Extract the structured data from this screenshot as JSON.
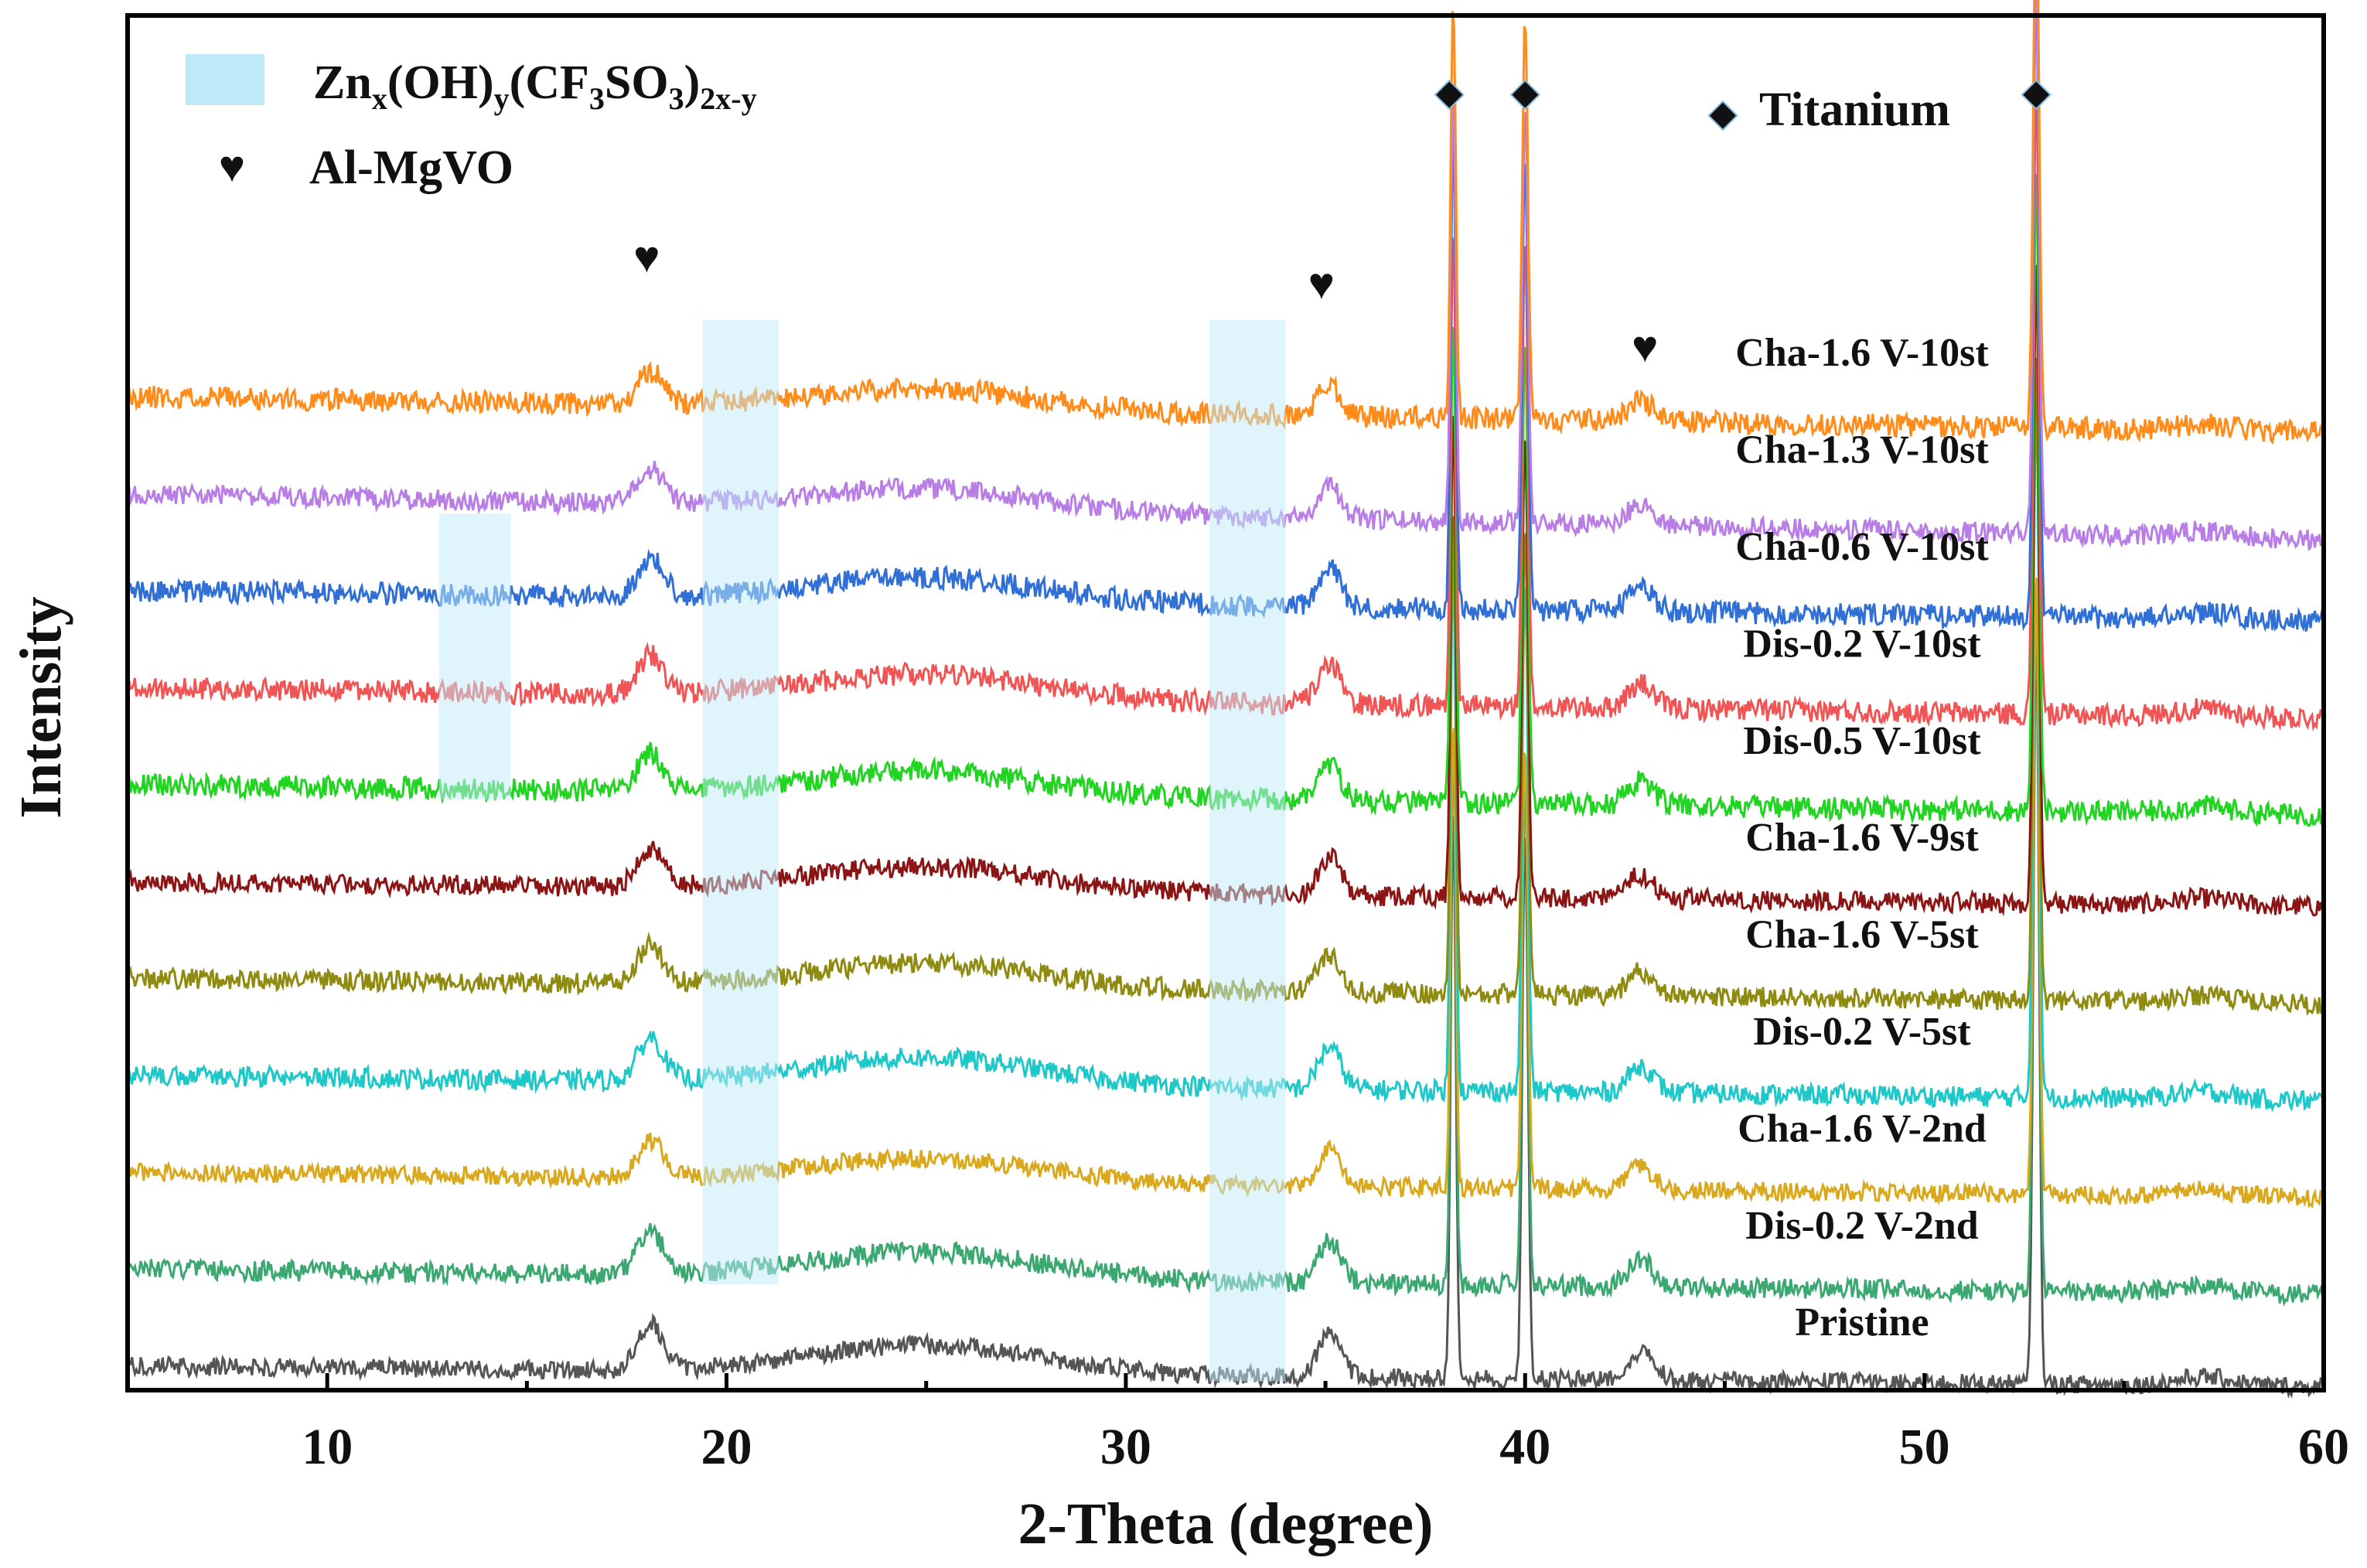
{
  "chart_data": {
    "type": "line",
    "xlabel": "2-Theta (degree)",
    "ylabel": "Intensity",
    "xlim": [
      5,
      60
    ],
    "xticks": [
      10,
      20,
      30,
      40,
      50,
      60
    ],
    "legend": {
      "band_label": {
        "pre": "Zn",
        "sub1": "x",
        "mid1": "(OH)",
        "sub2": "y",
        "mid2": "(CF",
        "sub3": "3",
        "mid3": "SO",
        "sub4": "3",
        "mid4": ")",
        "sub5": "2x-y"
      },
      "heart_label": "Al-MgVO",
      "diamond_label": "Titanium",
      "band_color": "#bfe9f7",
      "heart_symbol": "♥",
      "diamond_symbol": "◆"
    },
    "shaded_bands": [
      {
        "x": [
          12.8,
          14.6
        ],
        "series_from": "Cha-0.6 V-10st",
        "series_to": "Dis-0.5 V-10st"
      },
      {
        "x": [
          19.4,
          21.3
        ],
        "series_from": "Cha-1.6 V-10st",
        "series_to": "Dis-0.2 V-2nd"
      },
      {
        "x": [
          32.1,
          34.0
        ],
        "series_from": "Cha-1.6 V-10st",
        "series_to": "Pristine"
      }
    ],
    "markers": [
      {
        "symbol": "heart",
        "x": 18.0
      },
      {
        "symbol": "heart",
        "x": 34.9
      },
      {
        "symbol": "heart",
        "x": 43.0
      },
      {
        "symbol": "diamond",
        "x": 38.1
      },
      {
        "symbol": "diamond",
        "x": 40.0
      },
      {
        "symbol": "diamond",
        "x": 52.8
      }
    ],
    "series": [
      {
        "name": "Cha-1.6 V-10st",
        "color": "#ff8c1a",
        "offset": 9.6,
        "tilt": -0.35,
        "amp": 1.15,
        "noise": 0.11,
        "seed": 11
      },
      {
        "name": "Cha-1.3 V-10st",
        "color": "#b97ee6",
        "offset": 8.65,
        "tilt": -0.45,
        "amp": 1.2,
        "noise": 0.1,
        "seed": 12
      },
      {
        "name": "Cha-0.6 V-10st",
        "color": "#2f6fd6",
        "offset": 7.7,
        "tilt": -0.3,
        "amp": 1.35,
        "noise": 0.11,
        "seed": 13
      },
      {
        "name": "Dis-0.2 V-10st",
        "color": "#f05454",
        "offset": 6.75,
        "tilt": -0.3,
        "amp": 1.35,
        "noise": 0.11,
        "seed": 14
      },
      {
        "name": "Dis-0.5 V-10st",
        "color": "#22d422",
        "offset": 5.8,
        "tilt": -0.3,
        "amp": 1.35,
        "noise": 0.11,
        "seed": 15
      },
      {
        "name": "Cha-1.6 V-9st",
        "color": "#8b1414",
        "offset": 4.85,
        "tilt": -0.25,
        "amp": 1.35,
        "noise": 0.1,
        "seed": 16
      },
      {
        "name": "Cha-1.6 V-5st",
        "color": "#8f8b10",
        "offset": 3.9,
        "tilt": -0.25,
        "amp": 1.35,
        "noise": 0.1,
        "seed": 17
      },
      {
        "name": "Dis-0.2 V-5st",
        "color": "#1ec8c8",
        "offset": 2.95,
        "tilt": -0.25,
        "amp": 1.5,
        "noise": 0.1,
        "seed": 18
      },
      {
        "name": "Cha-1.6 V-2nd",
        "color": "#d9a81c",
        "offset": 2.0,
        "tilt": -0.25,
        "amp": 1.3,
        "noise": 0.09,
        "seed": 19
      },
      {
        "name": "Dis-0.2 V-2nd",
        "color": "#3aa870",
        "offset": 1.05,
        "tilt": -0.25,
        "amp": 1.5,
        "noise": 0.1,
        "seed": 20
      },
      {
        "name": "Pristine",
        "color": "#555555",
        "offset": 0.1,
        "tilt": -0.2,
        "amp": 1.6,
        "noise": 0.09,
        "seed": 21
      }
    ],
    "peaks": [
      {
        "x": 18.1,
        "height": 0.55,
        "width": 0.45
      },
      {
        "x": 35.1,
        "height": 0.55,
        "width": 0.4
      },
      {
        "x": 38.2,
        "height": 4.2,
        "width": 0.09
      },
      {
        "x": 40.0,
        "height": 4.0,
        "width": 0.1
      },
      {
        "x": 42.9,
        "height": 0.35,
        "width": 0.45
      },
      {
        "x": 52.8,
        "height": 5.5,
        "width": 0.1
      }
    ],
    "humps": [
      {
        "x": 25.0,
        "height": 0.35,
        "width": 4.0
      },
      {
        "x": 57.0,
        "height": 0.1,
        "width": 1.0
      }
    ]
  }
}
